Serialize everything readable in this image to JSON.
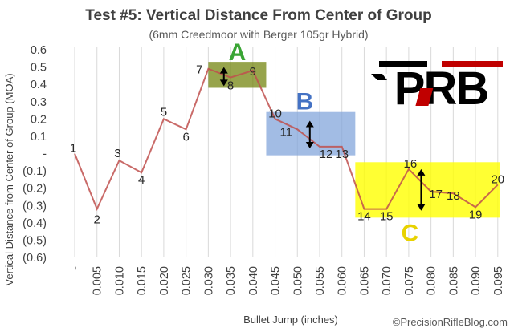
{
  "chart_data": {
    "type": "line",
    "title": "Test #5: Vertical Distance From Center of Group",
    "subtitle": "(6mm Creedmoor with Berger 105gr Hybrid)",
    "xlabel": "Bullet Jump (inches)",
    "ylabel": "Vertical Distance  from Center of Group (MOA)",
    "x_tick_labels": [
      "-",
      "0.005",
      "0.010",
      "0.015",
      "0.020",
      "0.025",
      "0.030",
      "0.035",
      "0.040",
      "0.045",
      "0.050",
      "0.055",
      "0.060",
      "0.065",
      "0.070",
      "0.075",
      "0.080",
      "0.085",
      "0.090",
      "0.095"
    ],
    "y_tick_labels": [
      "0.6",
      "0.5",
      "0.4",
      "0.3",
      "0.2",
      "0.1",
      "-",
      "(0.1)",
      "(0.2)",
      "(0.3)",
      "(0.4)",
      "(0.5)",
      "(0.6)"
    ],
    "y_tick_values": [
      0.6,
      0.5,
      0.4,
      0.3,
      0.2,
      0.1,
      0,
      -0.1,
      -0.2,
      -0.3,
      -0.4,
      -0.5,
      -0.6
    ],
    "ylim": [
      -0.6,
      0.6
    ],
    "grid": "vertical",
    "legend": "none",
    "series": [
      {
        "color": "#c0504d",
        "x": [
          0,
          0.005,
          0.01,
          0.015,
          0.02,
          0.025,
          0.03,
          0.035,
          0.04,
          0.045,
          0.05,
          0.055,
          0.06,
          0.065,
          0.07,
          0.075,
          0.08,
          0.085,
          0.09,
          0.095
        ],
        "values": [
          0.0,
          -0.32,
          -0.04,
          -0.11,
          0.2,
          0.14,
          0.49,
          0.44,
          0.48,
          0.2,
          0.14,
          0.04,
          0.04,
          -0.32,
          -0.32,
          -0.09,
          -0.22,
          -0.23,
          -0.31,
          -0.18
        ],
        "point_labels": [
          "1",
          "2",
          "3",
          "4",
          "5",
          "6",
          "7",
          "8",
          "9",
          "10",
          "11",
          "12",
          "13",
          "14",
          "15",
          "16",
          "17",
          "18",
          "19",
          "20"
        ]
      }
    ],
    "regions": [
      {
        "letter": "A",
        "x_range": [
          0.03,
          0.043
        ],
        "y_range": [
          0.38,
          0.53
        ],
        "fill": "#6b7d00",
        "letter_color": "#3aa535"
      },
      {
        "letter": "B",
        "x_range": [
          0.043,
          0.063
        ],
        "y_range": [
          -0.01,
          0.24
        ],
        "fill": "#7b9fd8",
        "letter_color": "#4472c4"
      },
      {
        "letter": "C",
        "x_range": [
          0.063,
          0.0955
        ],
        "y_range": [
          -0.37,
          -0.05
        ],
        "fill": "#ffff00",
        "letter_color": "#e8d200"
      }
    ],
    "arrows": [
      {
        "x": 0.0335,
        "y_top": 0.5,
        "y_bottom": 0.39
      },
      {
        "x": 0.0528,
        "y_top": 0.19,
        "y_bottom": 0.03
      },
      {
        "x": 0.0778,
        "y_top": -0.09,
        "y_bottom": -0.33
      }
    ],
    "logo": {
      "text": "PRB",
      "colors": [
        "#000000",
        "#c00000"
      ]
    },
    "credit": "©PrecisionRifleBlog.com"
  }
}
